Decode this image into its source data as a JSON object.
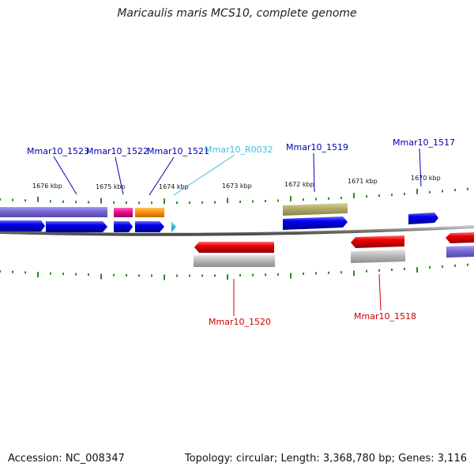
{
  "title": "Maricaulis maris MCS10, complete genome",
  "footer": {
    "accession": "Accession: NC_008347",
    "topology": "Topology: circular; Length: 3,368,780 bp; Genes: 3,116"
  },
  "colors": {
    "backbone": "#808080",
    "tick": "#2e8b22",
    "forward_cds": "#0000ee",
    "reverse_cds": "#ee0000",
    "rna": "#44c0e0",
    "label_forward": "#0000aa",
    "label_reverse": "#cc0000",
    "label_rna": "#3cc0dd"
  },
  "kbp_labels": [
    "1676 kbp",
    "1675 kbp",
    "1674 kbp",
    "1673 kbp",
    "1672 kbp",
    "1671 kbp",
    "1670 kbp"
  ],
  "genes_top": [
    {
      "name": "Mmar10_1523",
      "kind": "forward"
    },
    {
      "name": "Mmar10_1522",
      "kind": "forward"
    },
    {
      "name": "Mmar10_1521",
      "kind": "forward"
    },
    {
      "name": "Mmar10_R0032",
      "kind": "rna"
    },
    {
      "name": "Mmar10_1519",
      "kind": "forward"
    },
    {
      "name": "Mmar10_1517",
      "kind": "forward"
    }
  ],
  "genes_bottom": [
    {
      "name": "Mmar10_1520",
      "kind": "reverse"
    },
    {
      "name": "Mmar10_1518",
      "kind": "reverse"
    }
  ]
}
